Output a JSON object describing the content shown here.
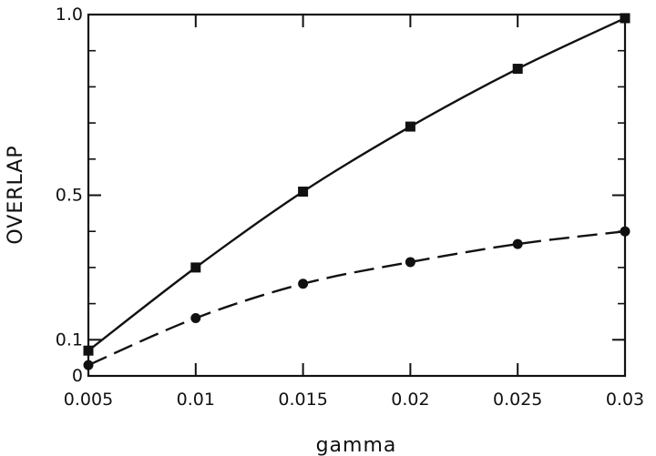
{
  "chart_data": {
    "type": "line",
    "title": "",
    "xlabel": "gamma",
    "ylabel": "OVERLAP",
    "xlim": [
      0.005,
      0.03
    ],
    "ylim": [
      0,
      1.0
    ],
    "x_ticks": [
      0.005,
      0.01,
      0.015,
      0.02,
      0.025,
      0.03
    ],
    "x_tick_labels": [
      "0.005",
      "0.01",
      "0.015",
      "0.02",
      "0.025",
      "0.03"
    ],
    "y_ticks": [
      0,
      0.1,
      0.5,
      1.0
    ],
    "y_tick_labels": [
      "0",
      "0.1",
      "0.5",
      "1.0"
    ],
    "y_minor_ticks": [
      0.2,
      0.3,
      0.4,
      0.6,
      0.7,
      0.8,
      0.9
    ],
    "grid": false,
    "series": [
      {
        "style": "solid",
        "marker": "square",
        "x": [
          0.005,
          0.01,
          0.015,
          0.02,
          0.025,
          0.03
        ],
        "y": [
          0.07,
          0.3,
          0.51,
          0.69,
          0.85,
          0.99
        ]
      },
      {
        "style": "dashed",
        "marker": "circle",
        "x": [
          0.005,
          0.01,
          0.015,
          0.02,
          0.025,
          0.03
        ],
        "y": [
          0.03,
          0.16,
          0.255,
          0.315,
          0.365,
          0.4
        ]
      }
    ]
  }
}
